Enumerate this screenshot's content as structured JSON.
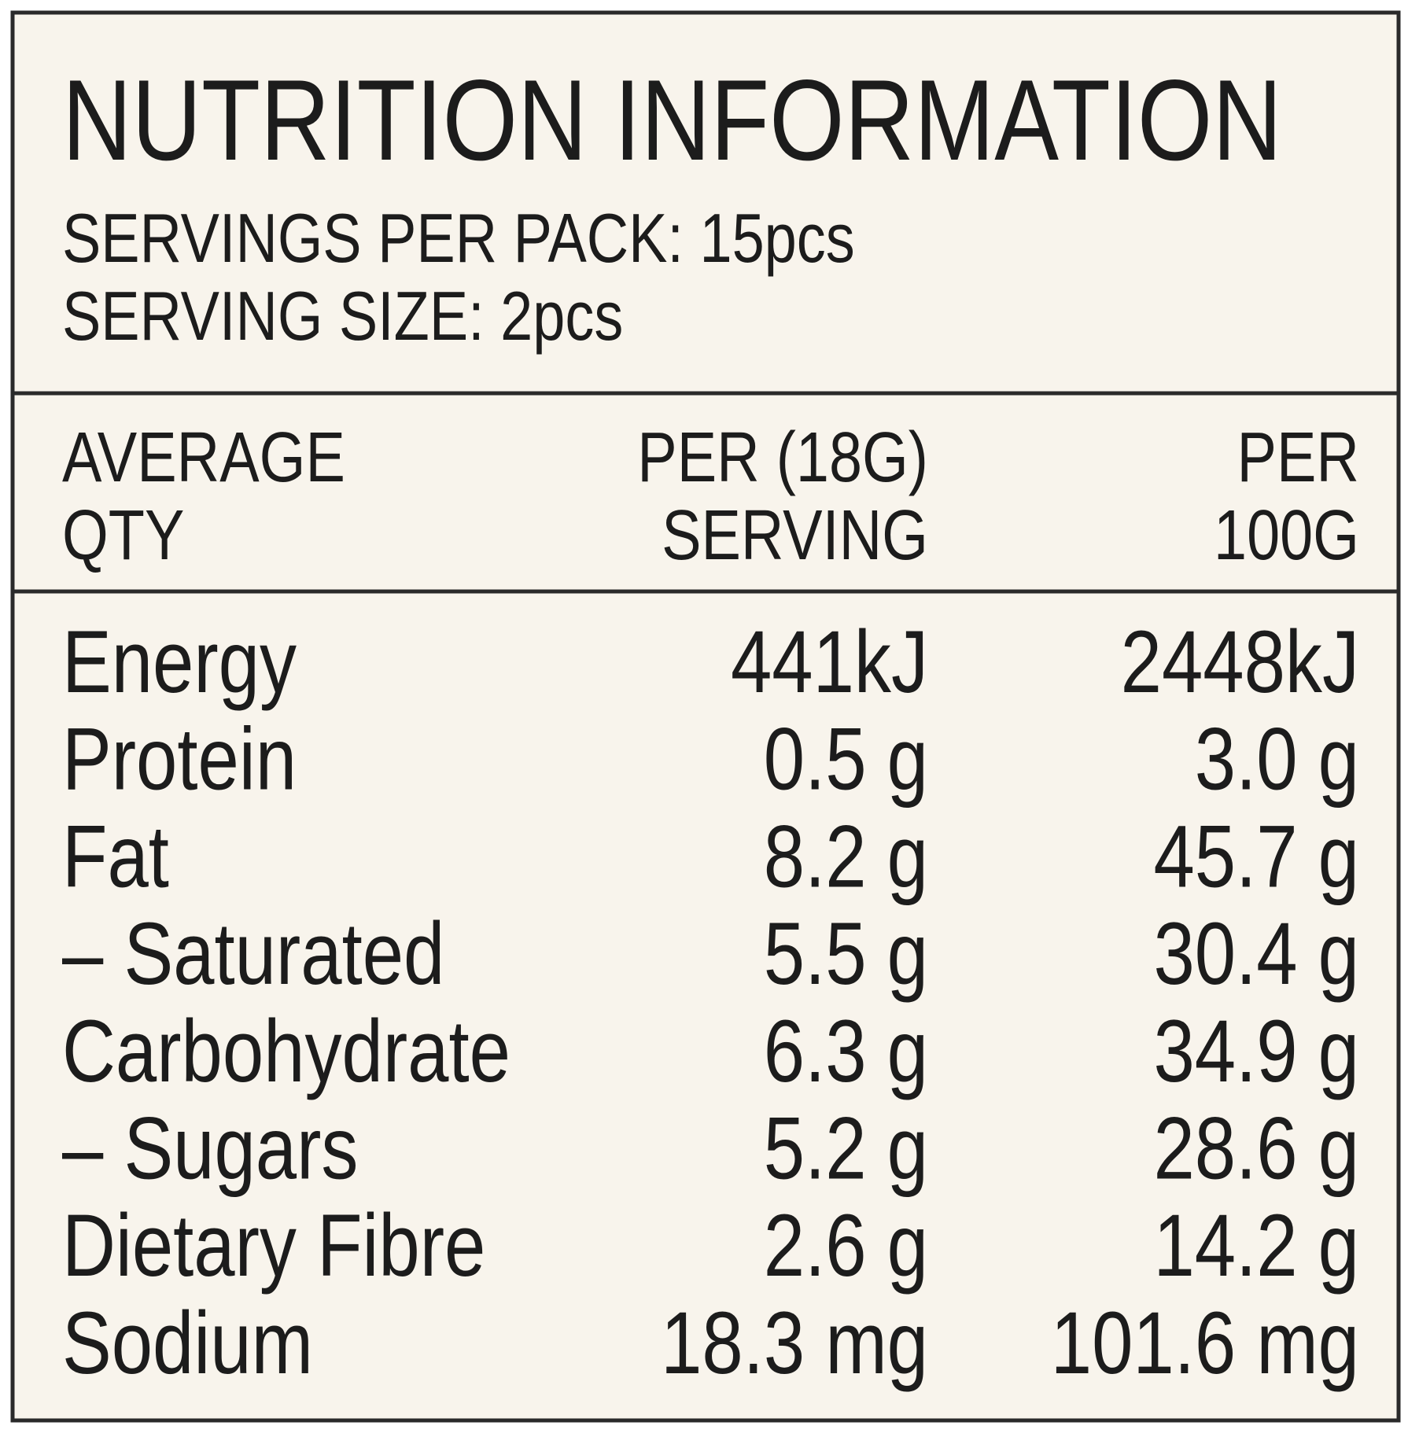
{
  "header": {
    "title": "NUTRITION INFORMATION",
    "servings_per_pack": "SERVINGS PER PACK: 15pcs",
    "serving_size": "SERVING SIZE: 2pcs"
  },
  "table": {
    "columns": [
      [
        "AVERAGE",
        "QTY"
      ],
      [
        "PER (18G)",
        "SERVING"
      ],
      [
        "PER",
        "100G"
      ]
    ],
    "rows": [
      [
        "Energy",
        "441kJ",
        "2448kJ"
      ],
      [
        "Protein",
        "0.5 g",
        "3.0 g"
      ],
      [
        "Fat",
        "8.2 g",
        "45.7 g"
      ],
      [
        "– Saturated",
        "5.5 g",
        "30.4 g"
      ],
      [
        "Carbohydrate",
        "6.3 g",
        "34.9 g"
      ],
      [
        "– Sugars",
        "5.2 g",
        "28.6 g"
      ],
      [
        "Dietary Fibre",
        "2.6 g",
        "14.2 g"
      ],
      [
        "Sodium",
        "18.3 mg",
        "101.6 mg"
      ]
    ]
  }
}
